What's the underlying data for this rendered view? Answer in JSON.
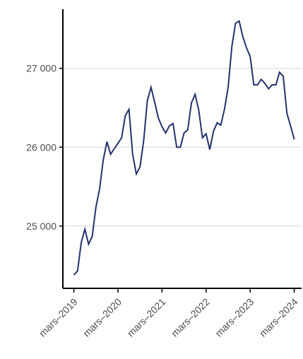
{
  "chart_data": {
    "type": "line",
    "x": [
      "2019-03",
      "2019-04",
      "2019-05",
      "2019-06",
      "2019-07",
      "2019-08",
      "2019-09",
      "2019-10",
      "2019-11",
      "2019-12",
      "2020-01",
      "2020-02",
      "2020-03",
      "2020-04",
      "2020-05",
      "2020-06",
      "2020-07",
      "2020-08",
      "2020-09",
      "2020-10",
      "2020-11",
      "2020-12",
      "2021-01",
      "2021-02",
      "2021-03",
      "2021-04",
      "2021-05",
      "2021-06",
      "2021-07",
      "2021-08",
      "2021-09",
      "2021-10",
      "2021-11",
      "2021-12",
      "2022-01",
      "2022-02",
      "2022-03",
      "2022-04",
      "2022-05",
      "2022-06",
      "2022-07",
      "2022-08",
      "2022-09",
      "2022-10",
      "2022-11",
      "2022-12",
      "2023-01",
      "2023-02",
      "2023-03",
      "2023-04",
      "2023-05",
      "2023-06",
      "2023-07",
      "2023-08",
      "2023-09",
      "2023-10",
      "2023-11",
      "2023-12",
      "2024-01",
      "2024-02",
      "2024-03"
    ],
    "series": [
      {
        "color": "#22336b",
        "values": [
          24380,
          24430,
          24790,
          24960,
          24770,
          24870,
          25240,
          25470,
          25840,
          26070,
          25910,
          25980,
          26050,
          26120,
          26400,
          26480,
          25910,
          25660,
          25750,
          26080,
          26590,
          26760,
          26570,
          26370,
          26260,
          26180,
          26270,
          26300,
          26000,
          26000,
          26180,
          26220,
          26560,
          26670,
          26470,
          26120,
          26170,
          25970,
          26200,
          26310,
          26280,
          26480,
          26760,
          27270,
          27570,
          27600,
          27400,
          27260,
          27150,
          26790,
          26790,
          26860,
          26810,
          26740,
          26790,
          26790,
          26950,
          26900,
          26430,
          26270,
          26100
        ]
      }
    ],
    "xlim": [
      "2018-12",
      "2024-05"
    ],
    "xticks": [
      {
        "value": "2019-03",
        "label": "mars–2019"
      },
      {
        "value": "2020-03",
        "label": "mars–2020"
      },
      {
        "value": "2021-03",
        "label": "mars–2021"
      },
      {
        "value": "2022-03",
        "label": "mars–2022"
      },
      {
        "value": "2023-03",
        "label": "mars–2023"
      },
      {
        "value": "2024-03",
        "label": "mars–2024"
      }
    ],
    "ylim": [
      24210,
      27750
    ],
    "yticks": [
      {
        "value": 25000,
        "label": "25 000"
      },
      {
        "value": 26000,
        "label": "26 000"
      },
      {
        "value": 27000,
        "label": "27 000"
      }
    ],
    "grid": true
  }
}
